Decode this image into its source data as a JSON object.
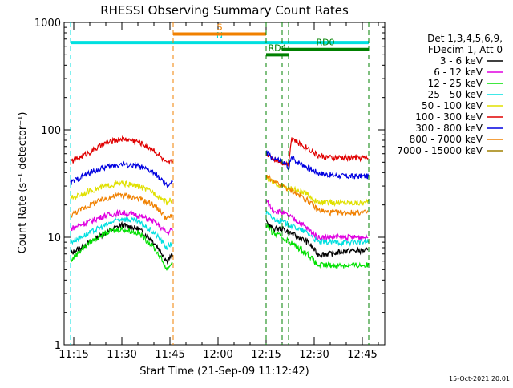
{
  "chart_data": {
    "type": "line",
    "title": "RHESSI Observing Summary Count Rates",
    "xlabel": "Start Time (21-Sep-09 11:12:42)",
    "ylabel": "Count Rate (s⁻¹ detector⁻¹)",
    "yscale": "log",
    "ylim": [
      1,
      1000
    ],
    "xlim_min": [
      11.0,
      12.0
    ],
    "xlim_min_end": [
      12.0,
      52.0
    ],
    "yticks": [
      {
        "value": 1,
        "label": "1"
      },
      {
        "value": 10,
        "label": "10"
      },
      {
        "value": 100,
        "label": "100"
      },
      {
        "value": 1000,
        "label": "1000"
      }
    ],
    "xticks": [
      {
        "hour": 11,
        "minute": 15,
        "label": "11:15"
      },
      {
        "hour": 11,
        "minute": 30,
        "label": "11:30"
      },
      {
        "hour": 11,
        "minute": 45,
        "label": "11:45"
      },
      {
        "hour": 12,
        "minute": 0,
        "label": "12:00"
      },
      {
        "hour": 12,
        "minute": 15,
        "label": "12:15"
      },
      {
        "hour": 12,
        "minute": 30,
        "label": "12:30"
      },
      {
        "hour": 12,
        "minute": 45,
        "label": "12:45"
      }
    ],
    "legend": {
      "position": "right",
      "header": [
        "Det 1,3,4,5,6,9,",
        "FDecim 1, Att 0"
      ]
    },
    "series": [
      {
        "name": "3 - 6 keV",
        "color": "#000000",
        "x": [
          "11:14",
          "11:20",
          "11:25",
          "11:30",
          "11:35",
          "11:40",
          "11:44",
          "11:46",
          "12:15",
          "12:17",
          "12:20",
          "12:25",
          "12:28",
          "12:31",
          "12:35",
          "12:40",
          "12:47"
        ],
        "y": [
          7,
          9,
          11,
          13,
          12,
          9,
          6,
          7,
          14,
          12,
          12,
          10,
          9,
          7,
          7,
          7.5,
          7.5
        ]
      },
      {
        "name": "6 - 12 keV",
        "color": "#e000e0",
        "x": [
          "11:14",
          "11:20",
          "11:25",
          "11:30",
          "11:35",
          "11:40",
          "11:44",
          "11:46",
          "12:15",
          "12:17",
          "12:20",
          "12:25",
          "12:28",
          "12:31",
          "12:35",
          "12:40",
          "12:47"
        ],
        "y": [
          12,
          14,
          16,
          17,
          16,
          14,
          11,
          12,
          22,
          18,
          17,
          14,
          12,
          10,
          10,
          10,
          10
        ]
      },
      {
        "name": "12 - 25 keV",
        "color": "#00e000",
        "x": [
          "11:14",
          "11:20",
          "11:25",
          "11:30",
          "11:35",
          "11:40",
          "11:44",
          "11:46",
          "12:15",
          "12:17",
          "12:20",
          "12:25",
          "12:28",
          "12:31",
          "12:35",
          "12:40",
          "12:47"
        ],
        "y": [
          6,
          9,
          11,
          12,
          11,
          8,
          5,
          6,
          13,
          11,
          10,
          8,
          7,
          5.5,
          5.5,
          5.5,
          5.5
        ]
      },
      {
        "name": "25 - 50 keV",
        "color": "#00e0e0",
        "x": [
          "11:14",
          "11:20",
          "11:25",
          "11:30",
          "11:35",
          "11:40",
          "11:44",
          "11:46",
          "12:15",
          "12:17",
          "12:20",
          "12:25",
          "12:28",
          "12:31",
          "12:35",
          "12:40",
          "12:47"
        ],
        "y": [
          9,
          11,
          13,
          15,
          14,
          11,
          8,
          9,
          17,
          15,
          14,
          12,
          11,
          9,
          9,
          9,
          9
        ]
      },
      {
        "name": "50 - 100 keV",
        "color": "#e0e000",
        "x": [
          "11:14",
          "11:20",
          "11:25",
          "11:30",
          "11:35",
          "11:40",
          "11:44",
          "11:46",
          "12:15",
          "12:17",
          "12:20",
          "12:25",
          "12:28",
          "12:31",
          "12:35",
          "12:40",
          "12:47"
        ],
        "y": [
          23,
          27,
          30,
          32,
          30,
          26,
          21,
          23,
          36,
          32,
          30,
          27,
          25,
          21,
          21,
          21,
          21
        ]
      },
      {
        "name": "100 - 300 keV",
        "color": "#e00000",
        "x": [
          "11:14",
          "11:20",
          "11:25",
          "11:30",
          "11:35",
          "11:40",
          "11:44",
          "11:46",
          "12:15",
          "12:17",
          "12:20",
          "12:22",
          "12:23",
          "12:25",
          "12:28",
          "12:31",
          "12:35",
          "12:40",
          "12:47"
        ],
        "y": [
          50,
          62,
          75,
          83,
          78,
          65,
          48,
          52,
          60,
          55,
          50,
          48,
          85,
          75,
          68,
          58,
          55,
          55,
          55
        ]
      },
      {
        "name": "300 - 800 keV",
        "color": "#0000e0",
        "x": [
          "11:14",
          "11:20",
          "11:25",
          "11:30",
          "11:35",
          "11:40",
          "11:44",
          "11:46",
          "12:15",
          "12:17",
          "12:20",
          "12:22",
          "12:23",
          "12:25",
          "12:28",
          "12:31",
          "12:35",
          "12:40",
          "12:47"
        ],
        "y": [
          32,
          40,
          45,
          48,
          46,
          40,
          30,
          33,
          62,
          55,
          50,
          45,
          55,
          50,
          45,
          40,
          38,
          37,
          37
        ]
      },
      {
        "name": "800 - 7000 keV",
        "color": "#f08000",
        "x": [
          "11:14",
          "11:20",
          "11:25",
          "11:30",
          "11:35",
          "11:40",
          "11:44",
          "11:46",
          "12:15",
          "12:17",
          "12:20",
          "12:25",
          "12:28",
          "12:31",
          "12:35",
          "12:40",
          "12:47"
        ],
        "y": [
          16,
          20,
          23,
          25,
          23,
          20,
          15,
          16,
          38,
          33,
          30,
          25,
          22,
          18,
          17,
          17,
          17
        ]
      },
      {
        "name": "7000 - 15000 keV",
        "color": "#a08000",
        "x": [],
        "y": []
      }
    ],
    "annotations": [
      {
        "label": "N",
        "color": "#00e0e0",
        "start": "11:14",
        "end": "12:47",
        "level": 650
      },
      {
        "label": "S",
        "color": "#f08000",
        "start": "11:46",
        "end": "12:15",
        "level": 780
      },
      {
        "label": "RD0",
        "color": "#008000",
        "start": "12:20",
        "end": "12:47",
        "level": 560
      },
      {
        "label": "RD4",
        "color": "#008000",
        "start": "12:15",
        "end": "12:22",
        "level": 500
      }
    ],
    "timestamp": "15-Oct-2021 20:01"
  }
}
